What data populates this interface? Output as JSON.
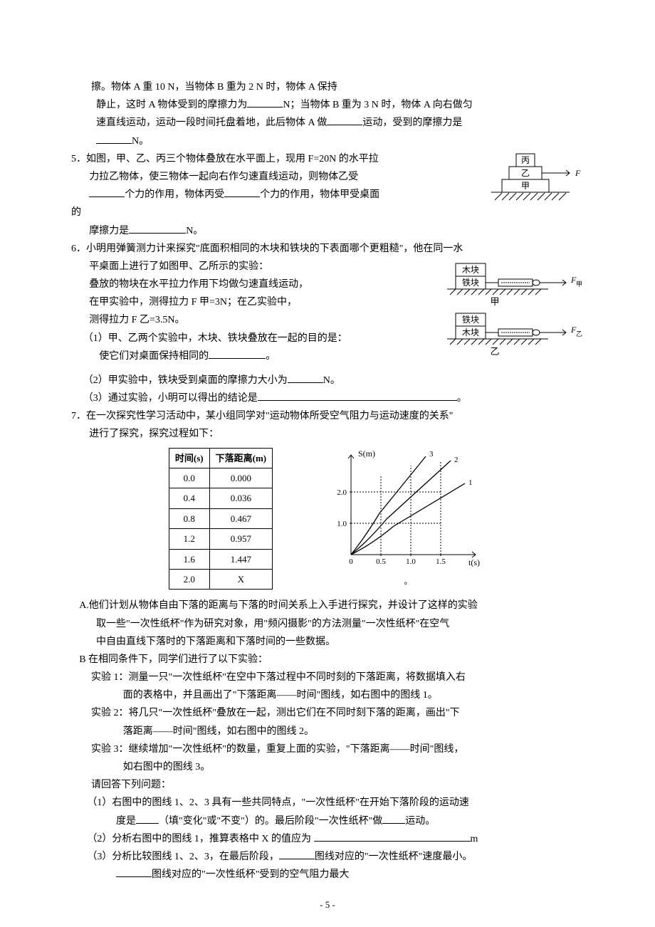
{
  "q4_tail": {
    "line1": "擦。物体 A 重 10 N，当物体 B 重为 2 N 时，物体 A 保持",
    "line2a": "静止，这时 A 物体受到的摩擦力为",
    "line2b": "N；当物体 B 重为 3 N 时，物体 A 向右做匀",
    "line3a": "速直线运动，运动一段时间托盘着地，此后物体 A 做",
    "line3b": "运动，受到的摩擦力是",
    "line4": "N。"
  },
  "q5": {
    "l1": "5．如图，甲、乙、丙三个物体叠放在水平面上，现用 F=20N 的水平拉",
    "l2": "力拉乙物体，使三物体一起向右作匀速直线运动，则物体乙受",
    "l3a": "个力的作用，物体丙受",
    "l3b": "个力的作用，物体甲受桌面",
    "l4_left": "的",
    "l5a": "摩擦力是",
    "l5b": "N。",
    "fig": {
      "top": "丙",
      "mid": "乙",
      "bot": "甲",
      "force": "F"
    }
  },
  "q6": {
    "l1": "6．小明用弹簧测力计来探究\"底面积相同的木块和铁块的下表面哪个更粗糙\"，他在同一水",
    "l2": "平桌面上进行了如图甲、乙所示的实验：",
    "l3": "叠放的物块在水平拉力作用下均做匀速直线运动，",
    "l4": "在甲实验中，测得拉力 F 甲=3N；在乙实验中，",
    "l5": "测得拉力 F 乙=3.5N。",
    "p1": "（1）甲、乙两个实验中，木块、铁块叠放在一起的目的是：",
    "p1b": "使它们对桌面保持相同的",
    "p1c": "。",
    "p2a": "（2）甲实验中，铁块受到桌面的摩擦力大小为",
    "p2b": "N。",
    "p3a": "（3）通过实验，小明可以得出的结论是",
    "p3b": "。",
    "fig": {
      "top_upper": "木块",
      "top_lower": "铁块",
      "top_label": "甲",
      "top_force": "F甲",
      "bot_upper": "铁块",
      "bot_lower": "木块",
      "bot_label": "乙",
      "bot_force": "F乙"
    }
  },
  "q7": {
    "l1": "7．在一次探究性学习活动中，某小组同学对\"运动物体所受空气阻力与运动速度的关系\"",
    "l2": "进行了探究，探究过程如下：",
    "table": {
      "headers": [
        "时间(s)",
        "下落距离(m)"
      ],
      "rows": [
        [
          "0.0",
          "0.000"
        ],
        [
          "0.4",
          "0.036"
        ],
        [
          "0.8",
          "0.467"
        ],
        [
          "1.2",
          "0.957"
        ],
        [
          "1.6",
          "1.447"
        ],
        [
          "2.0",
          "X"
        ]
      ]
    },
    "chart": {
      "ylabel": "S(m)",
      "xlabel": "t(s)",
      "xticks": [
        "0",
        "0.5",
        "1.0",
        "1.5"
      ],
      "yticks": [
        "1.0",
        "2.0"
      ],
      "lines": [
        "1",
        "2",
        "3"
      ],
      "grid_color": "#000000",
      "line_color": "#000000",
      "background": "#ffffff",
      "xlim": [
        0,
        2.0
      ],
      "ylim": [
        0,
        3.0
      ]
    },
    "chart_suffix": "。",
    "A1": "A.他们计划从物体自由下落的距离与下落的时间关系上入手进行探究，并设计了这样的实验",
    "A2": "取一些\"一次性纸杯\"作为研究对象，用\"频闪摄影\"的方法测量\"一次性纸杯\"在空气",
    "A3": "中自由直线下落时的下落距离和下落时间的一些数据。",
    "B0": "B 在相同条件下，同学们进行了以下实验：",
    "B1a": "实验 1：测量一只\"一次性纸杯\"在空中下落过程中不同时刻的下落距离，将数据填入右",
    "B1b": "面的表格中，并且画出了\"下落距离——时间\"图线，如右图中的图线 1。",
    "B2a": "实验 2：将几只\"一次性纸杯\"叠放在一起，测出它们在不同时刻下落的距离，画出\"下",
    "B2b": "落距离——时间\"图线，如右图中的图线 2。",
    "B3a": "实验 3：继续增加\"一次性纸杯\"的数量，重复上面的实验，\"下落距离——时间\"图线，",
    "B3b": "如右图中的图线 3。",
    "Q0": "请回答下列问题：",
    "Q1a": "（1）右图中的图线 1、2、3 具有一些共同特点，\"一次性纸杯\"在开始下落阶段的运动速",
    "Q1b_a": "度是",
    "Q1b_b": "（填\"变化\"或\"不变\"）的。最后阶段\"一次性纸杯\"做",
    "Q1b_c": "运动。",
    "Q2a": "（2）分析右图中的图线 1，推算表格中 X 的值应为",
    "Q2b": "m",
    "Q3a": "（3）分析比较图线 1、2、3，在最后阶段，",
    "Q3b": "图线对应的\"一次性纸杯\"速度最小。",
    "Q3c": "图线对应的\"一次性纸杯\"受到的空气阻力最大"
  },
  "pagenum": "- 5 -"
}
